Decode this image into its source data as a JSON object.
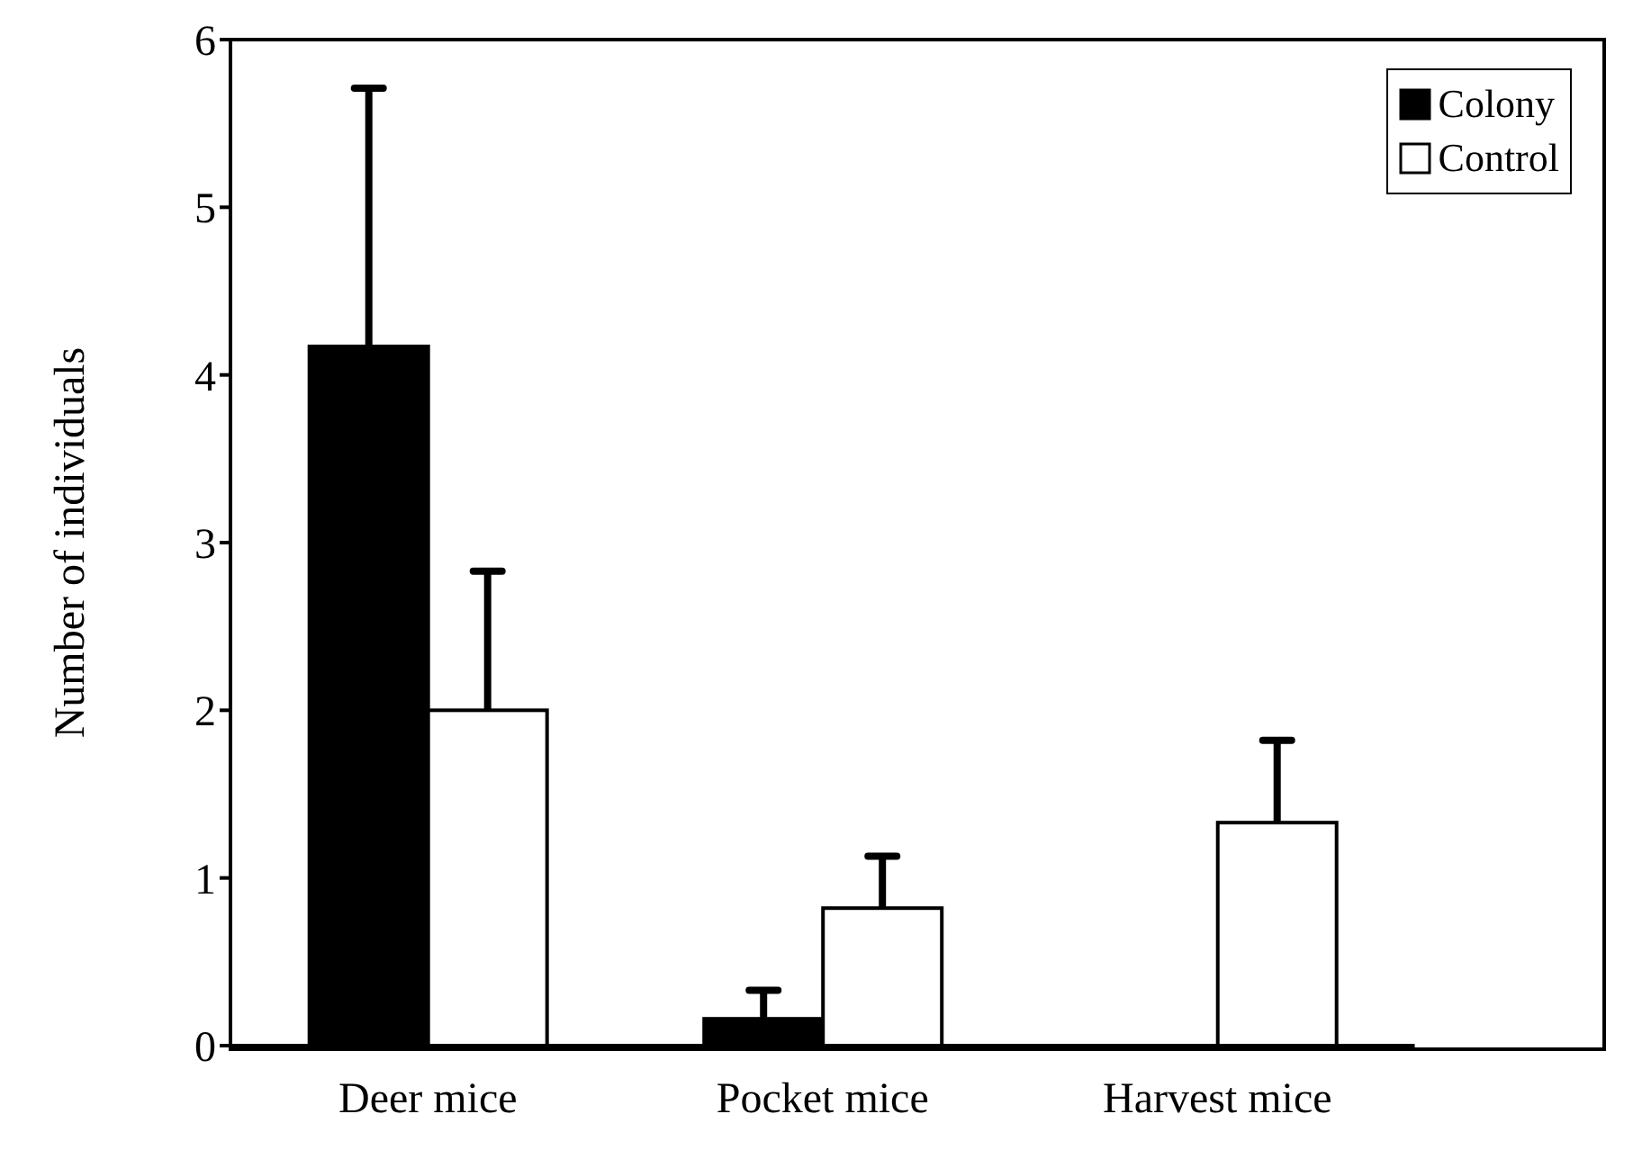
{
  "chart_data": {
    "type": "bar",
    "ylabel": "Number of individuals",
    "categories": [
      "Deer mice",
      "Pocket mice",
      "Harvest mice"
    ],
    "series": [
      {
        "name": "Colony",
        "color": "#000000",
        "values": [
          4.17,
          0.16,
          0
        ],
        "errors": [
          [
            4.17,
            5.71
          ],
          [
            0.16,
            0.33
          ],
          null
        ]
      },
      {
        "name": "Control",
        "color": "#ffffff",
        "values": [
          2.0,
          0.82,
          1.33
        ],
        "errors": [
          [
            2.0,
            2.83
          ],
          [
            0.82,
            1.13
          ],
          [
            1.33,
            1.82
          ]
        ]
      }
    ],
    "ylim": [
      0,
      6
    ],
    "yticks": [
      0,
      1,
      2,
      3,
      4,
      5,
      6
    ],
    "legend": "top right",
    "grid": false
  }
}
